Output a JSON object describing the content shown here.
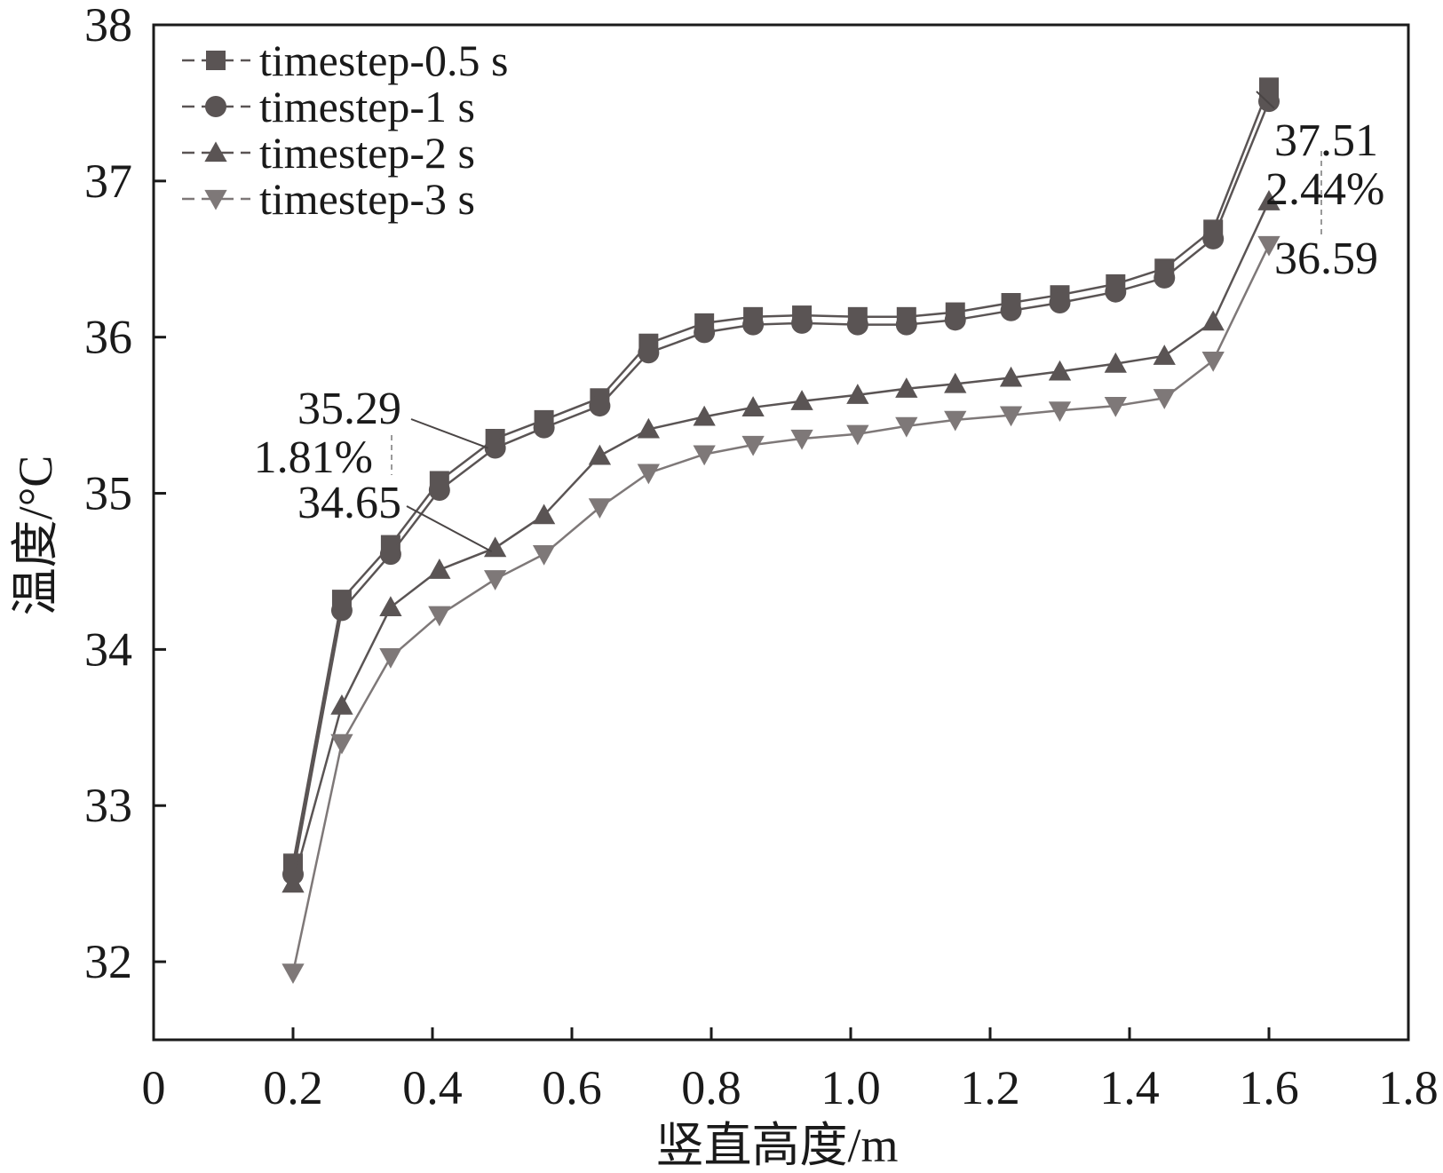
{
  "chart_data": {
    "type": "line",
    "xlabel": "竖直高度/m",
    "ylabel": "温度/°C",
    "xlim": [
      0,
      1.8
    ],
    "ylim": [
      31.5,
      38
    ],
    "x_ticks": [
      "0",
      "0.2",
      "0.4",
      "0.6",
      "0.8",
      "1.0",
      "1.2",
      "1.4",
      "1.6",
      "1.8"
    ],
    "y_ticks": [
      "32",
      "33",
      "34",
      "35",
      "36",
      "37",
      "38"
    ],
    "grid": false,
    "legend_position": "top-left",
    "x": [
      0.2,
      0.27,
      0.34,
      0.41,
      0.49,
      0.56,
      0.64,
      0.71,
      0.79,
      0.86,
      0.93,
      1.01,
      1.08,
      1.15,
      1.23,
      1.3,
      1.38,
      1.45,
      1.52,
      1.6
    ],
    "series": [
      {
        "name": "timestep-0.5 s",
        "marker": "square",
        "color": "#5a5454",
        "values": [
          32.63,
          34.32,
          34.67,
          35.08,
          35.35,
          35.47,
          35.61,
          35.96,
          36.09,
          36.13,
          36.14,
          36.13,
          36.13,
          36.16,
          36.22,
          36.27,
          36.34,
          36.44,
          36.69,
          37.6
        ]
      },
      {
        "name": "timestep-1 s",
        "marker": "circle",
        "color": "#5a5454",
        "values": [
          32.56,
          34.25,
          34.61,
          35.02,
          35.29,
          35.42,
          35.56,
          35.9,
          36.03,
          36.08,
          36.09,
          36.08,
          36.08,
          36.11,
          36.17,
          36.22,
          36.29,
          36.38,
          36.63,
          37.51
        ]
      },
      {
        "name": "timestep-2 s",
        "marker": "triangle-up",
        "color": "#5a5454",
        "values": [
          32.5,
          33.64,
          34.27,
          34.51,
          34.65,
          34.86,
          35.24,
          35.41,
          35.49,
          35.55,
          35.59,
          35.63,
          35.67,
          35.7,
          35.74,
          35.78,
          35.83,
          35.88,
          36.1,
          36.87
        ]
      },
      {
        "name": "timestep-3 s",
        "marker": "triangle-down",
        "color": "#7e7878",
        "values": [
          31.93,
          33.4,
          33.95,
          34.22,
          34.45,
          34.61,
          34.91,
          35.13,
          35.25,
          35.31,
          35.35,
          35.38,
          35.43,
          35.47,
          35.5,
          35.53,
          35.56,
          35.61,
          35.85,
          36.59
        ]
      }
    ],
    "annotations": [
      {
        "text": "35.29",
        "target_x": 0.49,
        "target_y": 35.29
      },
      {
        "text": "1.81%"
      },
      {
        "text": "34.65",
        "target_x": 0.49,
        "target_y": 34.65
      },
      {
        "text": "37.51",
        "target_x": 1.6,
        "target_y": 37.51
      },
      {
        "text": "2.44%"
      },
      {
        "text": "36.59",
        "target_x": 1.6,
        "target_y": 36.59
      }
    ]
  }
}
